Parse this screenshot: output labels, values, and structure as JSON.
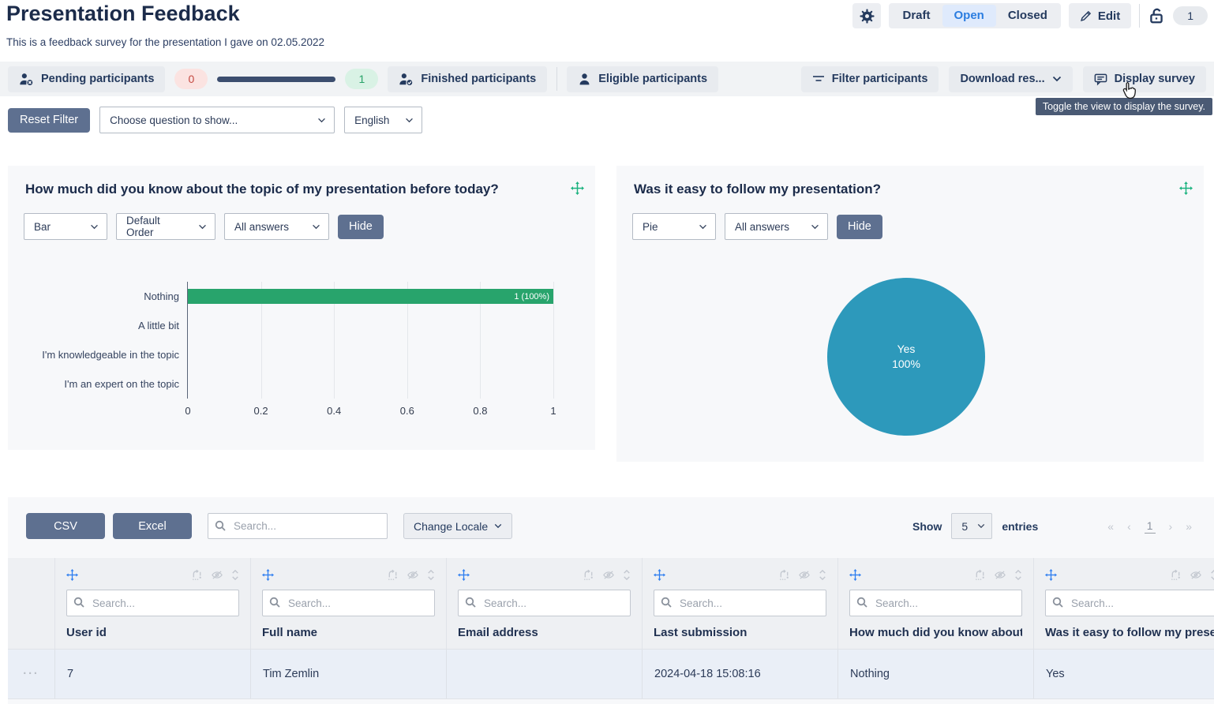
{
  "header": {
    "title": "Presentation Feedback",
    "subtitle": "This is a feedback survey for the presentation I gave on 02.05.2022",
    "status_tabs": [
      {
        "label": "Draft",
        "active": false
      },
      {
        "label": "Open",
        "active": true
      },
      {
        "label": "Closed",
        "active": false
      }
    ],
    "edit_label": "Edit",
    "response_badge": "1"
  },
  "toolbar": {
    "pending_label": "Pending participants",
    "pending_count": "0",
    "finished_count": "1",
    "finished_label": "Finished participants",
    "eligible_label": "Eligible participants",
    "filter_label": "Filter participants",
    "download_label": "Download res...",
    "display_label": "Display survey",
    "display_tooltip": "Toggle the view to display the survey."
  },
  "filter_bar": {
    "reset_label": "Reset Filter",
    "question_placeholder": "Choose question to show...",
    "language": "English"
  },
  "cards": [
    {
      "title": "How much did you know about the topic of my presentation before today?",
      "controls": {
        "chart_type": "Bar",
        "order": "Default Order",
        "answers": "All answers",
        "hide_label": "Hide"
      }
    },
    {
      "title": "Was it easy to follow my presentation?",
      "controls": {
        "chart_type": "Pie",
        "answers": "All answers",
        "hide_label": "Hide"
      }
    }
  ],
  "chart_data": [
    {
      "type": "bar",
      "orientation": "horizontal",
      "title": "How much did you know about the topic of my presentation before today?",
      "categories": [
        "Nothing",
        "A little bit",
        "I'm knowledgeable in the topic",
        "I'm an expert on the topic"
      ],
      "values": [
        1,
        0,
        0,
        0
      ],
      "bar_labels": [
        "1 (100%)",
        "",
        "",
        ""
      ],
      "xlim": [
        0,
        1
      ],
      "xticks": [
        0,
        0.2,
        0.4,
        0.6,
        0.8,
        1
      ],
      "bar_color": "#28a46c",
      "grid": true,
      "legend": false
    },
    {
      "type": "pie",
      "title": "Was it easy to follow my presentation?",
      "labels": [
        "Yes"
      ],
      "values": [
        100
      ],
      "center_label": "Yes\n100%",
      "colors": [
        "#2d99bb"
      ],
      "legend": false
    }
  ],
  "table": {
    "csv_label": "CSV",
    "excel_label": "Excel",
    "search_placeholder": "Search...",
    "change_locale_label": "Change Locale",
    "show_label": "Show",
    "page_size": "5",
    "entries_label": "entries",
    "pagination": {
      "first": "«",
      "prev": "‹",
      "current": "1",
      "next": "›",
      "last": "»"
    },
    "columns": [
      {
        "title": "User id",
        "search_placeholder": "Search..."
      },
      {
        "title": "Full name",
        "search_placeholder": "Search..."
      },
      {
        "title": "Email address",
        "search_placeholder": "Search..."
      },
      {
        "title": "Last submission",
        "search_placeholder": "Search..."
      },
      {
        "title": "How much did you know about the topic of my presentation before today?",
        "search_placeholder": "Search..."
      },
      {
        "title": "Was it easy to follow my presentation?",
        "search_placeholder": "Search..."
      }
    ],
    "row_actions": "···",
    "rows": [
      [
        "7",
        "Tim Zemlin",
        "",
        "2024-04-18 15:08:16",
        "Nothing",
        "Yes"
      ]
    ]
  },
  "colors": {
    "bar_green": "#28a46c",
    "pie_blue": "#2d99bb",
    "slate_button": "#5e7090",
    "active_tab_blue": "#2b7de0",
    "tooltip_bg": "#4a5a74"
  }
}
